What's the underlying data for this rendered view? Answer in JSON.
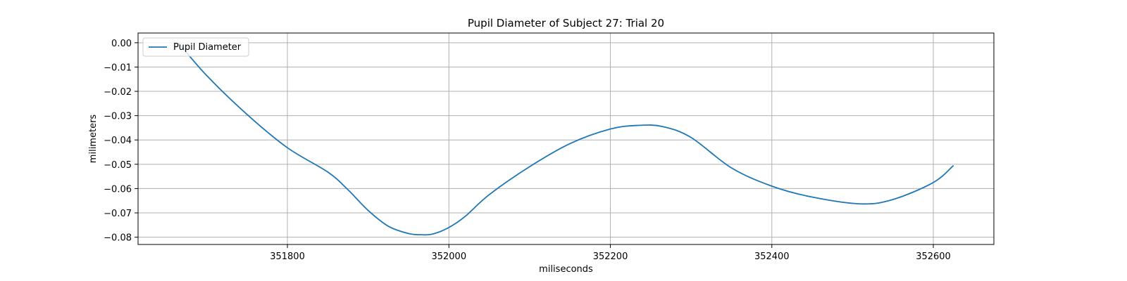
{
  "chart_data": {
    "type": "line",
    "title": "Pupil Diameter of Subject 27: Trial 20",
    "xlabel": "miliseconds",
    "ylabel": "milimeters",
    "xlim": [
      351615,
      352675
    ],
    "ylim": [
      -0.083,
      0.004
    ],
    "xticks": [
      351800,
      352000,
      352200,
      352400,
      352600
    ],
    "yticks": [
      0.0,
      -0.01,
      -0.02,
      -0.03,
      -0.04,
      -0.05,
      -0.06,
      -0.07,
      -0.08
    ],
    "ytick_labels": [
      "0.00",
      "−0.01",
      "−0.02",
      "−0.03",
      "−0.04",
      "−0.05",
      "−0.06",
      "−0.07",
      "−0.08"
    ],
    "xtick_labels": [
      "351800",
      "352000",
      "352200",
      "352400",
      "352600"
    ],
    "grid": true,
    "legend": {
      "position": "top-left"
    },
    "colors": {
      "line": "#1f77b4",
      "grid": "#b0b0b0"
    },
    "series": [
      {
        "name": "Pupil Diameter",
        "x": [
          351665,
          351700,
          351750,
          351800,
          351850,
          351875,
          351900,
          351925,
          351950,
          351965,
          351980,
          352000,
          352020,
          352050,
          352100,
          352150,
          352200,
          352235,
          352265,
          352300,
          352350,
          352400,
          352450,
          352510,
          352550,
          352600,
          352625
        ],
        "y": [
          0.0,
          -0.0135,
          -0.0295,
          -0.0432,
          -0.0532,
          -0.0605,
          -0.069,
          -0.0755,
          -0.0785,
          -0.079,
          -0.0787,
          -0.076,
          -0.0715,
          -0.0625,
          -0.051,
          -0.0415,
          -0.0355,
          -0.034,
          -0.0345,
          -0.039,
          -0.0515,
          -0.059,
          -0.0635,
          -0.0663,
          -0.0645,
          -0.0575,
          -0.0505
        ]
      }
    ]
  }
}
